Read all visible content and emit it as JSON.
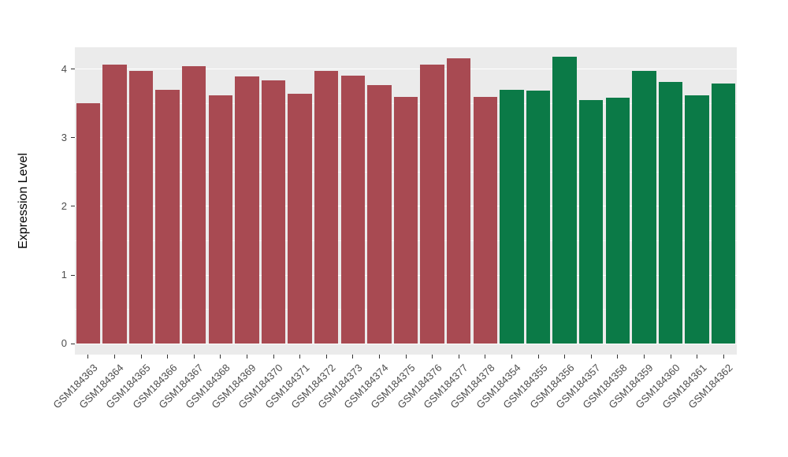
{
  "chart_data": {
    "type": "bar",
    "title": "",
    "xlabel": "",
    "ylabel": "Expression Level",
    "ylim": [
      -0.16,
      4.32
    ],
    "yticks": [
      0,
      1,
      2,
      3,
      4
    ],
    "yticks_minor": [
      0.5,
      1.5,
      2.5,
      3.5
    ],
    "grid": true,
    "legend": "none",
    "categories": [
      "GSM184363",
      "GSM184364",
      "GSM184365",
      "GSM184366",
      "GSM184367",
      "GSM184368",
      "GSM184369",
      "GSM184370",
      "GSM184371",
      "GSM184372",
      "GSM184373",
      "GSM184374",
      "GSM184375",
      "GSM184376",
      "GSM184377",
      "GSM184378",
      "GSM184354",
      "GSM184355",
      "GSM184356",
      "GSM184357",
      "GSM184358",
      "GSM184359",
      "GSM184360",
      "GSM184361",
      "GSM184362"
    ],
    "values": [
      3.5,
      4.07,
      3.97,
      3.7,
      4.04,
      3.62,
      3.9,
      3.84,
      3.64,
      3.97,
      3.91,
      3.77,
      3.6,
      4.07,
      4.16,
      3.6,
      3.7,
      3.69,
      4.18,
      3.55,
      3.58,
      3.98,
      3.82,
      3.62,
      3.79
    ],
    "groups": [
      "group1",
      "group1",
      "group1",
      "group1",
      "group1",
      "group1",
      "group1",
      "group1",
      "group1",
      "group1",
      "group1",
      "group1",
      "group1",
      "group1",
      "group1",
      "group1",
      "group2",
      "group2",
      "group2",
      "group2",
      "group2",
      "group2",
      "group2",
      "group2",
      "group2"
    ],
    "colors": {
      "group1": "#A84A52",
      "group2": "#0B7A47"
    },
    "panel_bg": "#EBEBEB",
    "grid_major_color": "#FFFFFF",
    "tick_color": "#333333",
    "tick_label_color": "#4D4D4D"
  }
}
